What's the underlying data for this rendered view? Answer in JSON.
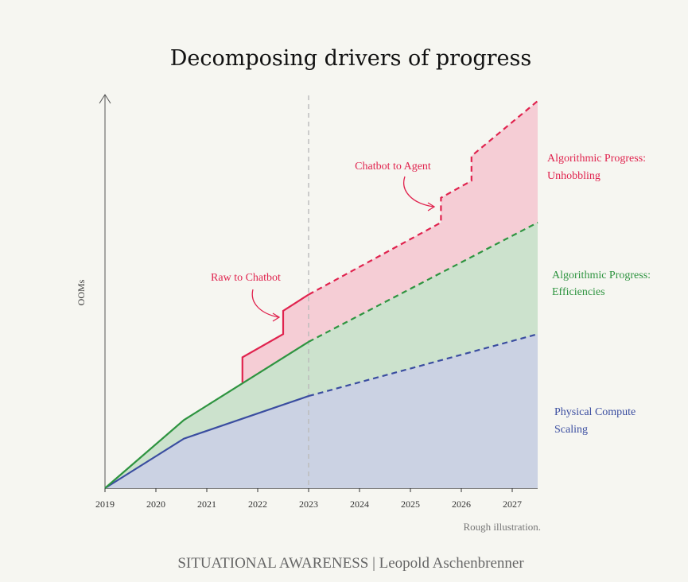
{
  "chart_data": {
    "type": "area",
    "title": "Decomposing drivers of progress",
    "xlabel": "",
    "ylabel": "OOMs",
    "xlim": [
      2019,
      2027.5
    ],
    "ylim": [
      0,
      10
    ],
    "tick_labels": [
      "2019",
      "2020",
      "2021",
      "2022",
      "2023",
      "2024",
      "2025",
      "2026",
      "2027"
    ],
    "tick_values": [
      2019,
      2020,
      2021,
      2022,
      2023,
      2024,
      2025,
      2026,
      2027
    ],
    "divider_x": 2023,
    "series": [
      {
        "name": "Physical Compute Scaling",
        "legend": [
          "Physical Compute",
          "Scaling"
        ],
        "color": "#3a4da0",
        "fill": "#cbd2e3",
        "solid": [
          [
            2019,
            0
          ],
          [
            2020.55,
            1.28
          ],
          [
            2023,
            2.38
          ]
        ],
        "dashed": [
          [
            2023,
            2.38
          ],
          [
            2027.5,
            3.98
          ]
        ]
      },
      {
        "name": "Algorithmic Progress: Efficiencies",
        "legend": [
          "Algorithmic Progress:",
          "Efficiencies"
        ],
        "color": "#2e9440",
        "fill": "#cce2cd",
        "solid": [
          [
            2019,
            0
          ],
          [
            2020.55,
            1.76
          ],
          [
            2023,
            3.78
          ]
        ],
        "dashed": [
          [
            2023,
            3.78
          ],
          [
            2027.5,
            6.86
          ]
        ]
      },
      {
        "name": "Algorithmic Progress: Unhobbling",
        "legend": [
          "Algorithmic Progress:",
          "Unhobbling"
        ],
        "color": "#e0234e",
        "fill": "#f5cdd5",
        "solid": [
          [
            2021.7,
            2.73
          ],
          [
            2021.7,
            3.38
          ],
          [
            2022.5,
            3.98
          ],
          [
            2022.5,
            4.58
          ],
          [
            2023,
            5.0
          ]
        ],
        "dashed": [
          [
            2023,
            5.0
          ],
          [
            2025.6,
            6.86
          ],
          [
            2025.6,
            7.5
          ],
          [
            2026.2,
            7.94
          ],
          [
            2026.2,
            8.58
          ],
          [
            2027.5,
            10.0
          ]
        ]
      }
    ],
    "annotations": [
      {
        "text": "Raw to Chatbot",
        "x": 2022.5,
        "y": 4.3
      },
      {
        "text": "Chatbot to Agent",
        "x": 2025.6,
        "y": 7.15
      }
    ],
    "note": "Rough illustration.",
    "credit": "SITUATIONAL AWARENESS | Leopold Aschenbrenner"
  }
}
